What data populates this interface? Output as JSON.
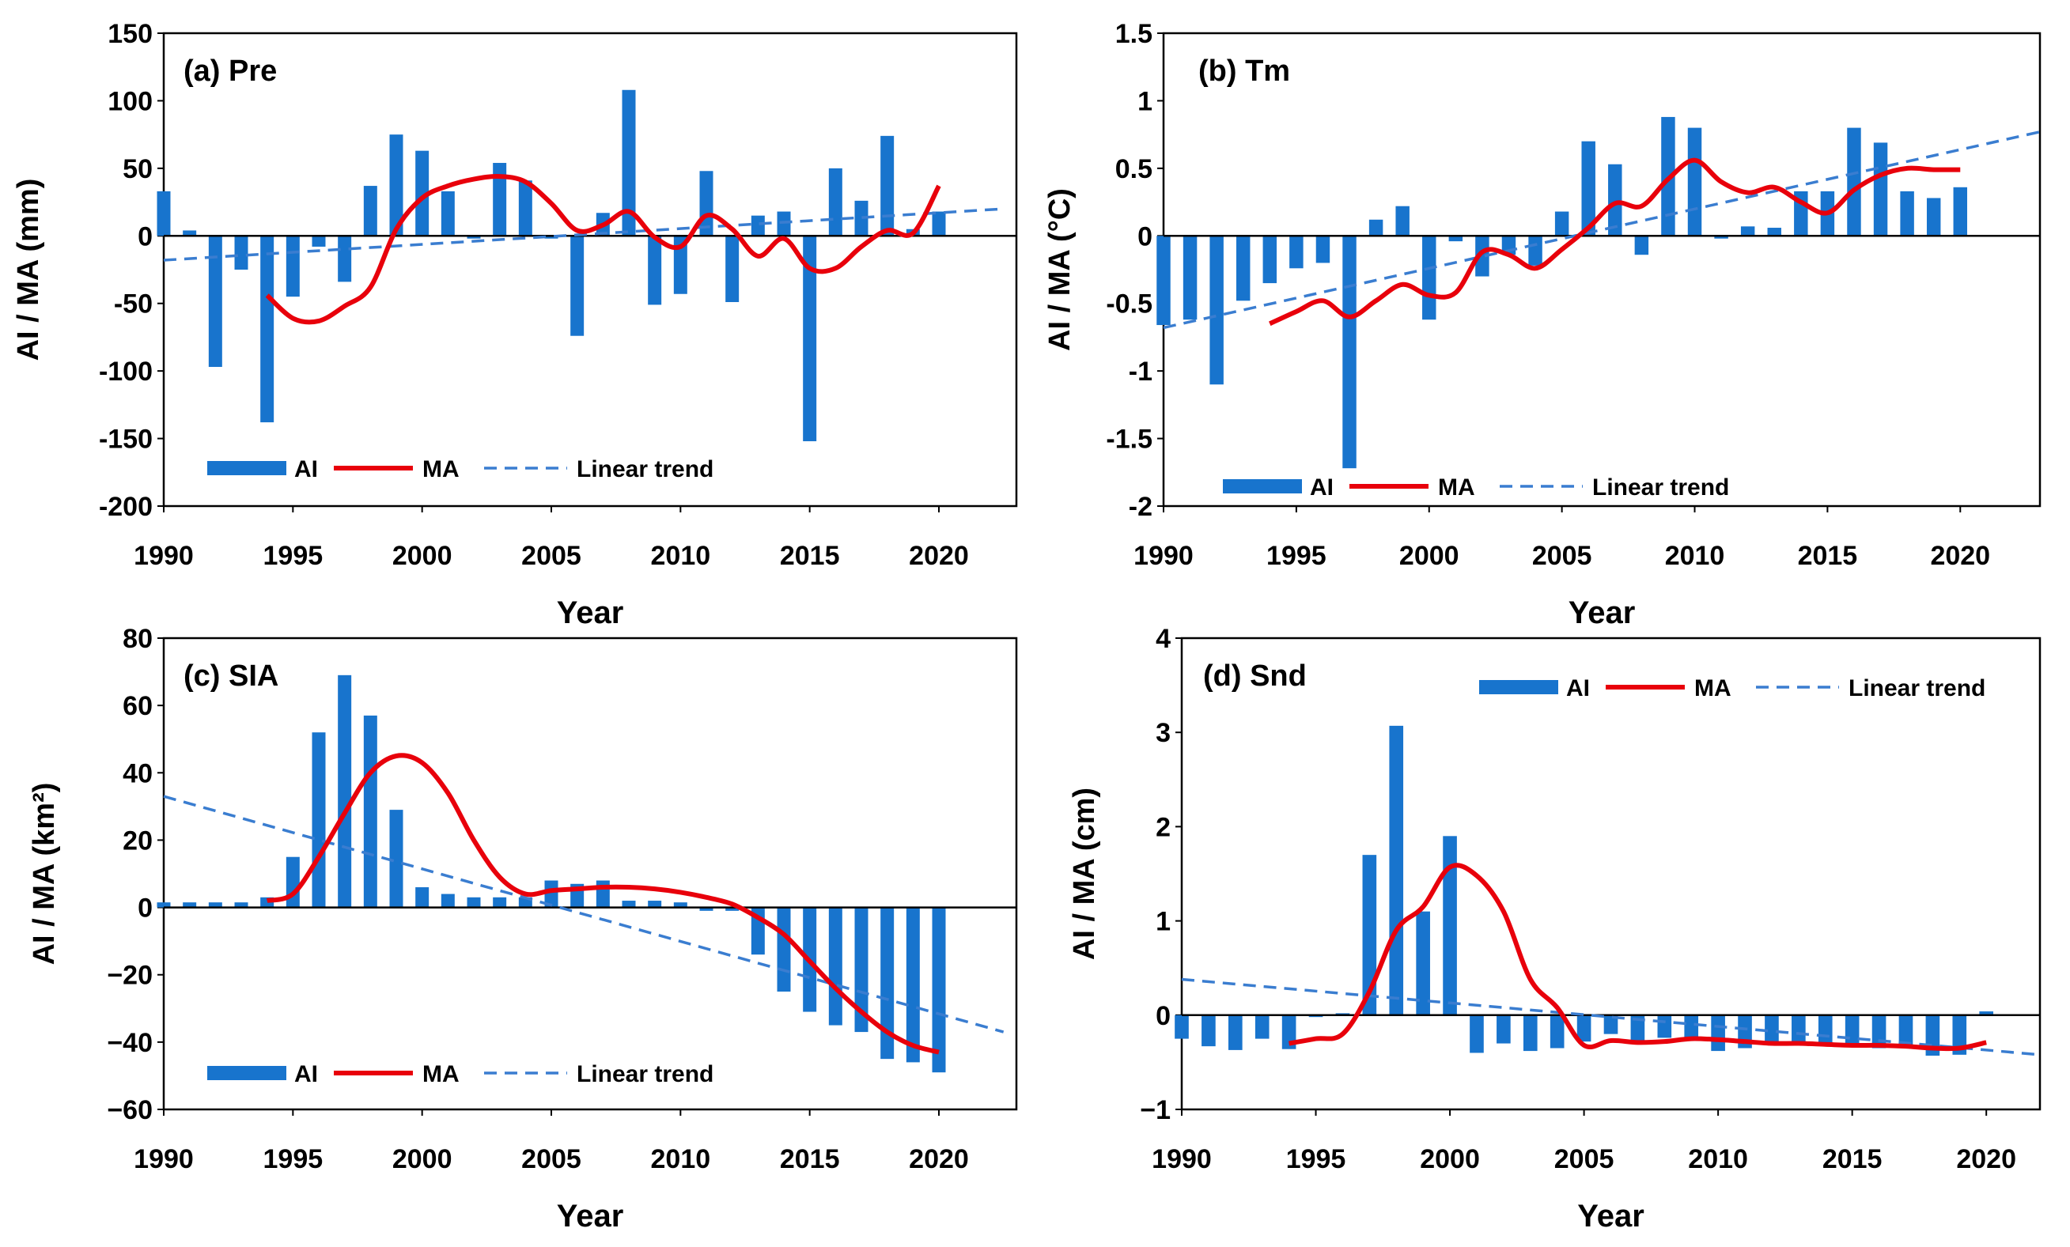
{
  "colors": {
    "bar": "#1874CD",
    "ma": "#E8000B",
    "trend": "#3A7DD0",
    "axis": "#000000"
  },
  "chart_data": [
    {
      "id": "pre",
      "type": "bar",
      "title": "(a) Pre",
      "xlabel": "Year",
      "ylabel": "AI / MA (mm)",
      "xlim": [
        1990,
        2023
      ],
      "ylim": [
        -200,
        150
      ],
      "yticks": [
        "150",
        "100",
        "50",
        "0",
        "-50",
        "-100",
        "-150",
        "-200"
      ],
      "yticks_values": [
        150,
        100,
        50,
        0,
        -50,
        -100,
        -150,
        -200
      ],
      "xticks": [
        "1990",
        "1995",
        "2000",
        "2005",
        "2010",
        "2015",
        "2020"
      ],
      "xticks_values": [
        1990,
        1995,
        2000,
        2005,
        2010,
        2015,
        2020
      ],
      "legend": {
        "placement": "bottom-left",
        "ai": "AI",
        "ma": "MA",
        "trend": "Linear trend"
      },
      "series": [
        {
          "name": "AI",
          "x": [
            1990,
            1991,
            1992,
            1993,
            1994,
            1995,
            1996,
            1997,
            1998,
            1999,
            2000,
            2001,
            2002,
            2003,
            2004,
            2005,
            2006,
            2007,
            2008,
            2009,
            2010,
            2011,
            2012,
            2013,
            2014,
            2015,
            2016,
            2017,
            2018,
            2019,
            2020
          ],
          "values": [
            33,
            4,
            -97,
            -25,
            -138,
            -45,
            -8,
            -34,
            37,
            75,
            63,
            33,
            -2,
            54,
            41,
            -2,
            -74,
            17,
            108,
            -51,
            -43,
            48,
            -49,
            15,
            18,
            -152,
            50,
            26,
            74,
            5,
            18
          ]
        },
        {
          "name": "MA",
          "x": [
            1994,
            1995,
            1996,
            1997,
            1998,
            1999,
            2000,
            2001,
            2002,
            2003,
            2004,
            2005,
            2006,
            2007,
            2008,
            2009,
            2010,
            2011,
            2012,
            2013,
            2014,
            2015,
            2016,
            2017,
            2018,
            2019,
            2020
          ],
          "values": [
            -44,
            -61,
            -63,
            -52,
            -38,
            5,
            28,
            37,
            42,
            44,
            40,
            24,
            4,
            8,
            18,
            -1,
            -8,
            15,
            5,
            -15,
            -2,
            -24,
            -24,
            -8,
            4,
            2,
            37
          ]
        },
        {
          "name": "Linear trend",
          "x": [
            1990,
            2022.5
          ],
          "values": [
            -18,
            20
          ]
        }
      ]
    },
    {
      "id": "tm",
      "type": "bar",
      "title": "(b) Tm",
      "xlabel": "Year",
      "ylabel": "AI / MA (°C)",
      "xlim": [
        1990,
        2023
      ],
      "ylim": [
        -2,
        1.5
      ],
      "yticks": [
        "1.5",
        "1",
        "0.5",
        "0",
        "-0.5",
        "-1",
        "-1.5",
        "-2"
      ],
      "yticks_values": [
        1.5,
        1,
        0.5,
        0,
        -0.5,
        -1,
        -1.5,
        -2
      ],
      "xticks": [
        "1990",
        "1995",
        "2000",
        "2005",
        "2010",
        "2015",
        "2020"
      ],
      "xticks_values": [
        1990,
        1995,
        2000,
        2005,
        2010,
        2015,
        2020
      ],
      "legend": {
        "placement": "bottom-left",
        "ai": "AI",
        "ma": "MA",
        "trend": "Linear trend"
      },
      "series": [
        {
          "name": "AI",
          "x": [
            1990,
            1991,
            1992,
            1993,
            1994,
            1995,
            1996,
            1997,
            1998,
            1999,
            2000,
            2001,
            2002,
            2003,
            2004,
            2005,
            2006,
            2007,
            2008,
            2009,
            2010,
            2011,
            2012,
            2013,
            2014,
            2015,
            2016,
            2017,
            2018,
            2019,
            2020
          ],
          "values": [
            -0.66,
            -0.62,
            -1.1,
            -0.48,
            -0.35,
            -0.24,
            -0.2,
            -1.72,
            0.12,
            0.22,
            -0.62,
            -0.04,
            -0.3,
            -0.14,
            -0.22,
            0.18,
            0.7,
            0.53,
            -0.14,
            0.88,
            0.8,
            -0.02,
            0.07,
            0.06,
            0.33,
            0.33,
            0.8,
            0.69,
            0.33,
            0.28,
            0.36
          ]
        },
        {
          "name": "MA",
          "x": [
            1994,
            1995,
            1996,
            1997,
            1998,
            1999,
            2000,
            2001,
            2002,
            2003,
            2004,
            2005,
            2006,
            2007,
            2008,
            2009,
            2010,
            2011,
            2012,
            2013,
            2014,
            2015,
            2016,
            2017,
            2018,
            2019,
            2020
          ],
          "values": [
            -0.65,
            -0.56,
            -0.48,
            -0.6,
            -0.48,
            -0.36,
            -0.44,
            -0.42,
            -0.12,
            -0.14,
            -0.24,
            -0.1,
            0.06,
            0.24,
            0.22,
            0.42,
            0.56,
            0.4,
            0.32,
            0.36,
            0.25,
            0.17,
            0.34,
            0.45,
            0.5,
            0.49,
            0.49
          ]
        },
        {
          "name": "Linear trend",
          "x": [
            1990,
            2023
          ],
          "values": [
            -0.68,
            0.77
          ]
        }
      ]
    },
    {
      "id": "sia",
      "type": "bar",
      "title": "(c) SIA",
      "xlabel": "Year",
      "ylabel": "AI / MA (km²)",
      "xlim": [
        1990,
        2023
      ],
      "ylim": [
        -60,
        80
      ],
      "yticks": [
        "80",
        "60",
        "40",
        "20",
        "0",
        "−20",
        "−40",
        "−60"
      ],
      "yticks_values": [
        80,
        60,
        40,
        20,
        0,
        -20,
        -40,
        -60
      ],
      "xticks": [
        "1990",
        "1995",
        "2000",
        "2005",
        "2010",
        "2015",
        "2020"
      ],
      "xticks_values": [
        1990,
        1995,
        2000,
        2005,
        2010,
        2015,
        2020
      ],
      "legend": {
        "placement": "bottom-left",
        "ai": "AI",
        "ma": "MA",
        "trend": "Linear trend"
      },
      "series": [
        {
          "name": "AI",
          "x": [
            1990,
            1991,
            1992,
            1993,
            1994,
            1995,
            1996,
            1997,
            1998,
            1999,
            2000,
            2001,
            2002,
            2003,
            2004,
            2005,
            2006,
            2007,
            2008,
            2009,
            2010,
            2011,
            2012,
            2013,
            2014,
            2015,
            2016,
            2017,
            2018,
            2019,
            2020
          ],
          "values": [
            1.5,
            1.5,
            1.5,
            1.5,
            3,
            15,
            52,
            69,
            57,
            29,
            6,
            4,
            3,
            3,
            3,
            8,
            7,
            8,
            2,
            2,
            1.5,
            -1,
            -1,
            -14,
            -25,
            -31,
            -35,
            -37,
            -45,
            -46,
            -49
          ]
        },
        {
          "name": "MA",
          "x": [
            1994,
            1995,
            1996,
            1997,
            1998,
            1999,
            2000,
            2001,
            2002,
            2003,
            2004,
            2005,
            2006,
            2007,
            2008,
            2009,
            2010,
            2011,
            2012,
            2013,
            2014,
            2015,
            2016,
            2017,
            2018,
            2019,
            2020
          ],
          "values": [
            2,
            4,
            15,
            28,
            40,
            45,
            43,
            34,
            20,
            9,
            4,
            5,
            5.5,
            6,
            6,
            5.5,
            4.5,
            3,
            1,
            -3,
            -8,
            -16,
            -24,
            -31,
            -37,
            -41,
            -43
          ]
        },
        {
          "name": "Linear trend",
          "x": [
            1990,
            2022.5
          ],
          "values": [
            33,
            -37
          ]
        }
      ]
    },
    {
      "id": "snd",
      "type": "bar",
      "title": "(d) Snd",
      "xlabel": "Year",
      "ylabel": "AI / MA (cm)",
      "xlim": [
        1990,
        2022
      ],
      "ylim": [
        -1,
        4
      ],
      "yticks": [
        "4",
        "3",
        "2",
        "1",
        "0",
        "−1"
      ],
      "yticks_values": [
        4,
        3,
        2,
        1,
        0,
        -1
      ],
      "xticks": [
        "1990",
        "1995",
        "2000",
        "2005",
        "2010",
        "2015",
        "2020"
      ],
      "xticks_values": [
        1990,
        1995,
        2000,
        2005,
        2010,
        2015,
        2020
      ],
      "legend": {
        "placement": "top-right",
        "ai": "AI",
        "ma": "MA",
        "trend": "Linear trend"
      },
      "series": [
        {
          "name": "AI",
          "x": [
            1990,
            1991,
            1992,
            1993,
            1994,
            1995,
            1996,
            1997,
            1998,
            1999,
            2000,
            2001,
            2002,
            2003,
            2004,
            2005,
            2006,
            2007,
            2008,
            2009,
            2010,
            2011,
            2012,
            2013,
            2014,
            2015,
            2016,
            2017,
            2018,
            2019,
            2020
          ],
          "values": [
            -0.25,
            -0.33,
            -0.37,
            -0.25,
            -0.36,
            -0.02,
            0.02,
            1.7,
            3.07,
            1.1,
            1.9,
            -0.4,
            -0.3,
            -0.38,
            -0.35,
            -0.28,
            -0.2,
            -0.3,
            -0.24,
            -0.27,
            -0.38,
            -0.35,
            -0.32,
            -0.28,
            -0.32,
            -0.3,
            -0.35,
            -0.35,
            -0.43,
            -0.42,
            0.04
          ]
        },
        {
          "name": "MA",
          "x": [
            1994,
            1995,
            1996,
            1997,
            1998,
            1999,
            2000,
            2001,
            2002,
            2003,
            2004,
            2005,
            2006,
            2007,
            2008,
            2009,
            2010,
            2011,
            2012,
            2013,
            2014,
            2015,
            2016,
            2017,
            2018,
            2019,
            2020
          ],
          "values": [
            -0.3,
            -0.25,
            -0.2,
            0.25,
            0.9,
            1.15,
            1.57,
            1.48,
            1.1,
            0.38,
            0.08,
            -0.32,
            -0.27,
            -0.29,
            -0.28,
            -0.25,
            -0.26,
            -0.28,
            -0.3,
            -0.3,
            -0.31,
            -0.32,
            -0.32,
            -0.33,
            -0.35,
            -0.35,
            -0.29
          ]
        },
        {
          "name": "Linear trend",
          "x": [
            1990,
            2022
          ],
          "values": [
            0.38,
            -0.42
          ]
        }
      ]
    }
  ]
}
